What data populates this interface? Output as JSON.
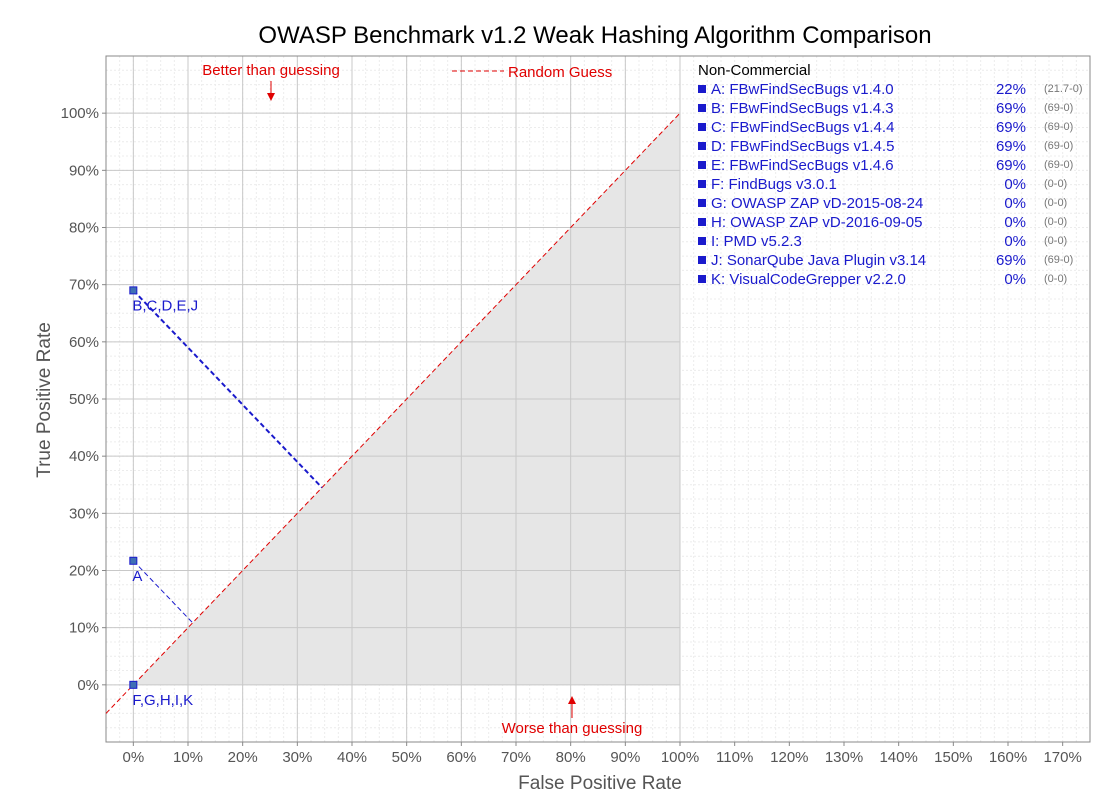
{
  "chart_data": {
    "type": "scatter",
    "title": "OWASP Benchmark v1.2 Weak Hashing Algorithm Comparison",
    "xlabel": "False Positive Rate",
    "ylabel": "True Positive Rate",
    "x_ticks": [
      "0%",
      "10%",
      "20%",
      "30%",
      "40%",
      "50%",
      "60%",
      "70%",
      "80%",
      "90%",
      "100%",
      "110%",
      "120%",
      "130%",
      "140%",
      "150%",
      "160%",
      "170%"
    ],
    "y_ticks": [
      "0%",
      "10%",
      "20%",
      "30%",
      "40%",
      "50%",
      "60%",
      "70%",
      "80%",
      "90%",
      "100%"
    ],
    "xlim": [
      -5,
      175
    ],
    "ylim": [
      -10,
      110
    ],
    "grid": true,
    "points": [
      {
        "label": "B,C,D,E,J",
        "x": 0,
        "y": 69
      },
      {
        "label": "A",
        "x": 0,
        "y": 21.7
      },
      {
        "label": "F,G,H,I,K",
        "x": 0,
        "y": 0
      }
    ],
    "annotations": {
      "better": "Better than guessing",
      "worse": "Worse than guessing",
      "random_guess": "Random Guess"
    },
    "colors": {
      "points": "#1a1acc",
      "random_line": "#e00000",
      "shade": "#e6e6e6",
      "grid": "#c8c8c8"
    }
  },
  "legend": {
    "title": "Non-Commercial",
    "items": [
      {
        "name": "A: FBwFindSecBugs v1.4.0",
        "score": "22%",
        "detail": "(21.7-0)"
      },
      {
        "name": "B: FBwFindSecBugs v1.4.3",
        "score": "69%",
        "detail": "(69-0)"
      },
      {
        "name": "C: FBwFindSecBugs v1.4.4",
        "score": "69%",
        "detail": "(69-0)"
      },
      {
        "name": "D: FBwFindSecBugs v1.4.5",
        "score": "69%",
        "detail": "(69-0)"
      },
      {
        "name": "E: FBwFindSecBugs v1.4.6",
        "score": "69%",
        "detail": "(69-0)"
      },
      {
        "name": "F: FindBugs v3.0.1",
        "score": "0%",
        "detail": "(0-0)"
      },
      {
        "name": "G: OWASP ZAP vD-2015-08-24",
        "score": "0%",
        "detail": "(0-0)"
      },
      {
        "name": "H: OWASP ZAP vD-2016-09-05",
        "score": "0%",
        "detail": "(0-0)"
      },
      {
        "name": "I:  PMD v5.2.3",
        "score": "0%",
        "detail": "(0-0)"
      },
      {
        "name": "J:  SonarQube Java Plugin v3.14",
        "score": "69%",
        "detail": "(69-0)"
      },
      {
        "name": "K: VisualCodeGrepper v2.2.0",
        "score": "0%",
        "detail": "(0-0)"
      }
    ]
  }
}
